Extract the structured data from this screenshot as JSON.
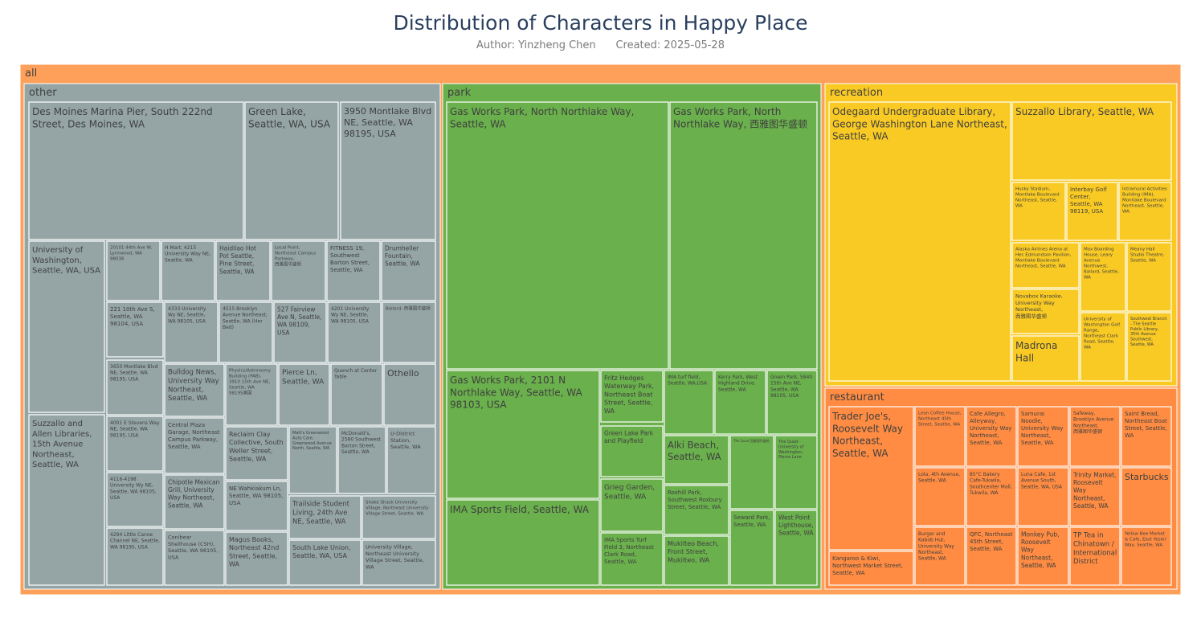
{
  "title": "Distribution of Characters in Happy Place",
  "subtitle": {
    "author": "Author: Yinzheng Chen",
    "created": "Created: 2025-05-28"
  },
  "colors": {
    "all": "#ffa05a",
    "other": "#95a5a6",
    "park": "#6ab04c",
    "recreation": "#f9ca24",
    "restaurant": "#ff8c42",
    "border": "#ffffff",
    "text": "#3f3f3f"
  },
  "chart_data": {
    "type": "treemap",
    "root": "all",
    "groups": [
      {
        "name": "other",
        "items": [
          "Des Moines Marina Pier, South 222nd Street, Des Moines, WA",
          "Green Lake, Seattle, WA, USA",
          "3950 Montlake Blvd NE, Seattle, WA 98195, USA",
          "University of Washington, Seattle, WA, USA",
          "Suzzallo and Allen Libraries, 15th Avenue Northeast, Seattle, WA",
          "20101 44th Ave W, Lynnwood, WA 98036",
          "H Mart, 4215 University Way NE, Seattle, WA",
          "Haidilao Hot Pot Seattle, Pine Street, Seattle, WA",
          "Local Point, Northeast Campus Parkway, 西雅图华盛顿",
          "FITNESS 19, Southwest Barton Street, Seattle, WA",
          "Drumheller Fountain, Seattle, WA",
          "221 10th Ave S, Seattle, WA 98104, USA",
          "4333 University Wy NE, Seattle, WA 98105, USA",
          "4515 Brooklyn Avenue Northeast, Seattle, WA (Her Bed)",
          "527 Fairview Ave N, Seattle, WA 98109, USA",
          "4201 University Wy NE, Seattle, WA 98105, USA",
          "Ballard, 西雅图华盛顿",
          "3650 Montlake Blvd NE, Seattle, WA 98195, USA",
          "Bulldog News, University Way Northeast, Seattle, WA",
          "Physics/Astronomy Building (PAB), 3910 15th Ave NE, Seattle, WA 98195美国",
          "Pierce Ln, Seattle, WA",
          "Quench at Center Table",
          "Othello",
          "4001 E Stevens Way NE, Seattle, WA 98195, USA",
          "Central Plaza Garage, Northeast Campus Parkway, Seattle, WA",
          "Reclaim Clay Collective, South Weller Street, Seattle, WA",
          "Matt's Greenwood Auto Care, Greenwood Avenue North, Seattle, WA",
          "McDonald's, 2580 Southwest Barton Street, Seattle, WA",
          "U-District Station, Seattle, WA",
          "4116-4198 University Wy NE, Seattle, WA 98105, USA",
          "Chipotle Mexican Grill, University Way Northeast, Seattle, WA",
          "NE Wahkiakum Ln, Seattle, WA 98105, USA",
          "Trailside Student Living, 24th Ave NE, Seattle, WA",
          "Shake Shack University Village, Northeast University Village Street, Seattle, WA",
          "4294 Little Canoe Channel NE, Seattle, WA 98195, USA",
          "Conibear Shellhouse (CSH), Seattle, WA 98105, USA",
          "Magus Books, Northeast 42nd Street, Seattle, WA",
          "South Lake Union, Seattle, WA, USA",
          "University Village, Northeast University Village Street, Seattle, WA"
        ]
      },
      {
        "name": "park",
        "items": [
          "Gas Works Park, North Northlake Way, Seattle, WA",
          "Gas Works Park, North Northlake Way, 西雅图华盛顿",
          "Gas Works Park, 2101 N Northlake Way, Seattle, WA 98103, USA",
          "IMA Sports Field, Seattle, WA",
          "Fritz Hedges Waterway Park, Northeast Boat Street, Seattle, WA",
          "Green Lake Park and Playfield",
          "Grieg Garden, Seattle, WA",
          "IMA Sports Turf Field 3, Northeast Clark Road, Seattle, WA",
          "IMA turf field, Seattle, WA,USA",
          "Kerry Park, West Highland Drive, Seattle, WA",
          "Green Park, 5840 15th Ave NE, Seattle, WA 98105, USA",
          "Alki Beach, Seattle, WA",
          "The Quad 西雅图华盛顿",
          "The Quad - University of Washington, Pierce Lane",
          "Roxhill Park, Southwest Roxbury Street, Seattle, WA",
          "Seward Park, Seattle, WA",
          "Mukilteo Beach, Front Street, Mukilteo, WA",
          "West Point Lighthouse, Seattle, WA"
        ]
      },
      {
        "name": "recreation",
        "items": [
          "Odegaard Undergraduate Library, George Washington Lane Northeast, Seattle, WA",
          "Suzzallo Library, Seattle, WA",
          "Husky Stadium, Montlake Boulevard Northeast, Seattle, WA",
          "Interbay Golf Center, Seattle, WA 98119, USA",
          "Intramural Activities Building (IMA), Montlake Boulevard Northeast, Seattle, WA",
          "Alaska Airlines Arena at Hec Edmundson Pavilion, Montlake Boulevard Northeast, Seattle, WA",
          "Mox Boarding House, Leary Avenue Northwest, Ballard, Seattle, WA",
          "Meany Hall Studio Theatre, Seattle, WA",
          "Novabox Karaoke, University Way Northeast, 西雅图华盛顿",
          "University of Washington Golf Range, Northeast Clark Road, Seattle, WA",
          "Southwest Branch - The Seattle Public Library, 35th Avenue Southwest, Seattle, WA",
          "Madrona Hall"
        ]
      },
      {
        "name": "restaurant",
        "items": [
          "Trader Joe's, Roosevelt Way Northeast, Seattle, WA",
          "Kangaroo & Kiwi, Northwest Market Street, Seattle, WA",
          "Leon Coffee House, Northeast 45th Street, Seattle, WA",
          "Cafe Allegro, Alleyway, University Way Northeast, Seattle, WA",
          "Samurai Noodle, University Way Northeast, Seattle, WA",
          "Safeway, Brooklyn Avenue Northeast, 西雅图华盛顿",
          "Saint Bread, Northeast Boat Street, Seattle, WA",
          "Lola, 4th Avenue, Seattle, WA",
          "85°C Bakery Cafe-Tukwila, Southcenter Mall, Tukwila, WA",
          "Luna Cafe, 1st Avenue South, Seattle, WA, USA",
          "Trinity Market, Roosevelt Way Northeast, Seattle, WA",
          "Starbucks",
          "Burger and Kabob Hut, University Way Northeast, Seattle, WA",
          "QFC, Northeast 45th Street, Seattle, WA",
          "Monkey Pub, Roosevelt Way Northeast, Seattle, WA",
          "TP Tea in Chinatown / International District",
          "Yellow Bee Market & Cafe, East Yesler Way, Seattle, WA"
        ]
      }
    ]
  }
}
